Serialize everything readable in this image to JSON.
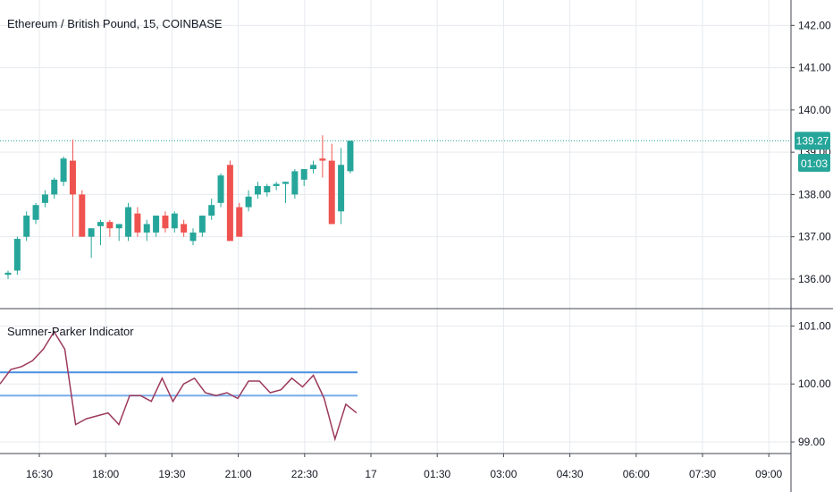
{
  "header": {
    "title": "Ethereum / British Pound, 15, COINBASE"
  },
  "indicator": {
    "title": "Sumner-Parker Indicator"
  },
  "price_badge": {
    "price": "139.27",
    "countdown": "01:03"
  },
  "colors": {
    "up": "#26a69a",
    "down": "#ef5350",
    "grid": "#e6e9ee",
    "price_line": "#26a69a",
    "oscillator": "#9c3a5c",
    "band": "#4a90e2"
  },
  "chart_data": [
    {
      "type": "candlestick",
      "title": "Ethereum / British Pound, 15, COINBASE",
      "ylim": [
        135.3,
        142.6
      ],
      "y_ticks": [
        "136.00",
        "137.00",
        "138.00",
        "139.00",
        "140.00",
        "141.00",
        "142.00"
      ],
      "last_price": 139.27,
      "candles": [
        {
          "o": 136.1,
          "h": 136.2,
          "l": 136.0,
          "c": 136.15
        },
        {
          "o": 136.2,
          "h": 137.0,
          "l": 136.1,
          "c": 136.95
        },
        {
          "o": 137.0,
          "h": 137.6,
          "l": 136.9,
          "c": 137.5
        },
        {
          "o": 137.4,
          "h": 137.8,
          "l": 137.3,
          "c": 137.75
        },
        {
          "o": 137.8,
          "h": 138.1,
          "l": 137.7,
          "c": 138.0
        },
        {
          "o": 138.0,
          "h": 138.4,
          "l": 137.9,
          "c": 138.35
        },
        {
          "o": 138.3,
          "h": 138.9,
          "l": 138.2,
          "c": 138.85
        },
        {
          "o": 138.8,
          "h": 139.3,
          "l": 137.0,
          "c": 138.0
        },
        {
          "o": 138.0,
          "h": 138.1,
          "l": 137.0,
          "c": 137.0
        },
        {
          "o": 137.0,
          "h": 137.2,
          "l": 136.5,
          "c": 137.2
        },
        {
          "o": 137.25,
          "h": 137.4,
          "l": 136.8,
          "c": 137.35
        },
        {
          "o": 137.35,
          "h": 137.4,
          "l": 137.0,
          "c": 137.2
        },
        {
          "o": 137.2,
          "h": 137.3,
          "l": 136.9,
          "c": 137.3
        },
        {
          "o": 137.0,
          "h": 137.8,
          "l": 136.9,
          "c": 137.7
        },
        {
          "o": 137.55,
          "h": 137.7,
          "l": 137.0,
          "c": 137.1
        },
        {
          "o": 137.1,
          "h": 137.4,
          "l": 136.9,
          "c": 137.3
        },
        {
          "o": 137.1,
          "h": 137.5,
          "l": 137.0,
          "c": 137.5
        },
        {
          "o": 137.5,
          "h": 137.6,
          "l": 137.1,
          "c": 137.2
        },
        {
          "o": 137.2,
          "h": 137.6,
          "l": 137.1,
          "c": 137.55
        },
        {
          "o": 137.3,
          "h": 137.4,
          "l": 137.0,
          "c": 137.1
        },
        {
          "o": 136.9,
          "h": 137.2,
          "l": 136.8,
          "c": 137.1
        },
        {
          "o": 137.1,
          "h": 137.5,
          "l": 137.0,
          "c": 137.5
        },
        {
          "o": 137.5,
          "h": 137.9,
          "l": 137.4,
          "c": 137.75
        },
        {
          "o": 137.8,
          "h": 138.5,
          "l": 137.7,
          "c": 138.45
        },
        {
          "o": 138.7,
          "h": 138.8,
          "l": 136.9,
          "c": 136.9
        },
        {
          "o": 137.7,
          "h": 137.8,
          "l": 137.0,
          "c": 137.0
        },
        {
          "o": 137.7,
          "h": 138.1,
          "l": 137.6,
          "c": 137.95
        },
        {
          "o": 138.0,
          "h": 138.3,
          "l": 137.9,
          "c": 138.2
        },
        {
          "o": 138.05,
          "h": 138.25,
          "l": 137.95,
          "c": 138.2
        },
        {
          "o": 138.2,
          "h": 138.3,
          "l": 138.1,
          "c": 138.25
        },
        {
          "o": 138.25,
          "h": 138.3,
          "l": 137.8,
          "c": 138.3
        },
        {
          "o": 138.0,
          "h": 138.6,
          "l": 137.9,
          "c": 138.55
        },
        {
          "o": 138.35,
          "h": 138.6,
          "l": 138.2,
          "c": 138.6
        },
        {
          "o": 138.6,
          "h": 138.8,
          "l": 138.5,
          "c": 138.7
        },
        {
          "o": 138.85,
          "h": 139.4,
          "l": 138.4,
          "c": 138.8
        },
        {
          "o": 138.8,
          "h": 139.2,
          "l": 137.3,
          "c": 137.3
        },
        {
          "o": 137.6,
          "h": 139.1,
          "l": 137.3,
          "c": 138.7
        },
        {
          "o": 138.55,
          "h": 139.27,
          "l": 138.5,
          "c": 139.27
        }
      ]
    },
    {
      "type": "line",
      "title": "Sumner-Parker Indicator",
      "ylim": [
        98.8,
        101.3
      ],
      "y_ticks": [
        "99.00",
        "100.00",
        "101.00"
      ],
      "values": [
        100.0,
        100.25,
        100.3,
        100.4,
        100.6,
        100.9,
        100.6,
        99.3,
        99.4,
        99.45,
        99.5,
        99.3,
        99.8,
        99.8,
        99.7,
        100.1,
        99.7,
        100.0,
        100.1,
        99.85,
        99.8,
        99.85,
        99.75,
        100.05,
        100.05,
        99.85,
        99.9,
        100.1,
        99.95,
        100.15,
        99.75,
        99.05,
        99.65,
        99.5
      ],
      "upper_band": 100.2,
      "lower_band": 99.8,
      "x_ticks": [
        "16:30",
        "18:00",
        "19:30",
        "21:00",
        "22:30",
        "17",
        "01:30",
        "03:00",
        "04:30",
        "06:00",
        "07:30",
        "09:00"
      ]
    }
  ]
}
